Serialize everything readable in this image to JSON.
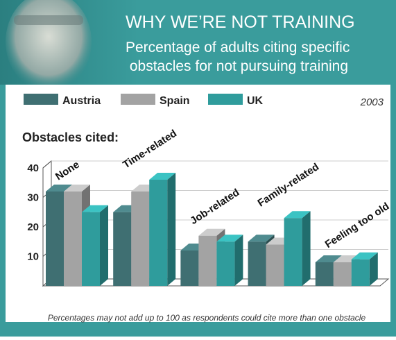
{
  "chart_data": {
    "type": "bar3d",
    "title": "WHY WE’RE NOT TRAINING",
    "subtitle": "Percentage of adults citing specific obstacles for not pursuing training",
    "year": "2003",
    "heading": "Obstacles cited:",
    "footnote": "Percentages may not add up to 100 as respondents could cite more than one obstacle",
    "categories": [
      "None",
      "Time-related",
      "Job-related",
      "Family-related",
      "Feeling too old"
    ],
    "series": [
      {
        "name": "Austria",
        "color": "#3f6f72",
        "values": [
          32,
          25,
          12,
          15,
          8
        ]
      },
      {
        "name": "Spain",
        "color": "#a3a3a3",
        "values": [
          32,
          32,
          17,
          14,
          8
        ]
      },
      {
        "name": "UK",
        "color": "#2f9c9c",
        "values": [
          25,
          36,
          15,
          23,
          9
        ]
      }
    ],
    "ylim": [
      0,
      40
    ],
    "yticks": [
      10,
      20,
      30,
      40
    ],
    "grid": true
  }
}
